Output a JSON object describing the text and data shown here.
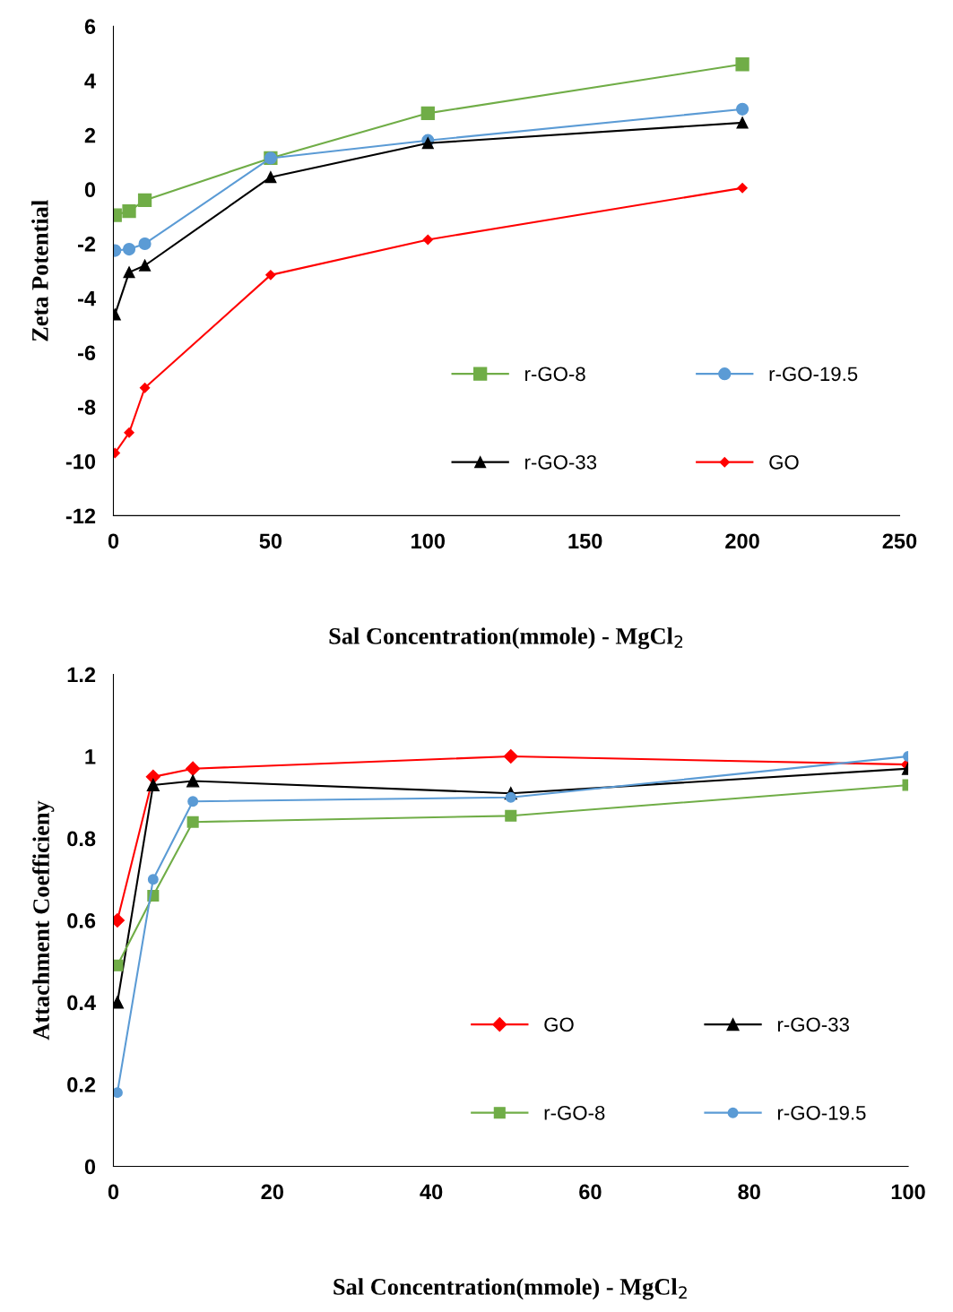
{
  "chart_data": [
    {
      "type": "line",
      "xlabel": "Sal Concentration(mmole) - MgCl$_{2}$",
      "ylabel": "Zeta Potential",
      "x": [
        0.5,
        5,
        10,
        50,
        100,
        200
      ],
      "xlim": [
        0,
        250
      ],
      "xticks": [
        0,
        50,
        100,
        150,
        200,
        250
      ],
      "ylim": [
        -12,
        6
      ],
      "yticks": [
        -12,
        -10,
        -8,
        -6,
        -4,
        -2,
        0,
        2,
        4,
        6
      ],
      "grid": false,
      "legend": "bottom right",
      "series": [
        {
          "name": "r-GO-8",
          "color": "#70ad47",
          "marker": "square",
          "values": [
            -0.95,
            -0.8,
            -0.4,
            1.15,
            2.8,
            4.6
          ]
        },
        {
          "name": "r-GO-19.5",
          "color": "#5b9bd5",
          "marker": "circle",
          "values": [
            -2.25,
            -2.2,
            -2.0,
            1.15,
            1.8,
            2.95
          ]
        },
        {
          "name": "r-GO-33",
          "color": "#000000",
          "marker": "triangle",
          "values": [
            -4.6,
            -3.05,
            -2.8,
            0.45,
            1.7,
            2.45
          ]
        },
        {
          "name": "GO",
          "color": "#ff0000",
          "marker": "diamond",
          "values": [
            -9.7,
            -8.95,
            -7.3,
            -3.15,
            -1.85,
            0.05
          ]
        }
      ]
    },
    {
      "type": "line",
      "xlabel": "Sal Concentration(mmole) - MgCl$_{2}$",
      "ylabel": "Attachment Coefficieny",
      "x": [
        0.5,
        5,
        10,
        50,
        100
      ],
      "xlim": [
        0,
        100
      ],
      "xticks": [
        0,
        20,
        40,
        60,
        80,
        100
      ],
      "ylim": [
        0,
        1.2
      ],
      "yticks": [
        0,
        0.2,
        0.4,
        0.6,
        0.8,
        1,
        1.2
      ],
      "grid": false,
      "legend": "bottom right",
      "series": [
        {
          "name": "GO",
          "color": "#ff0000",
          "marker": "diamond",
          "values": [
            0.6,
            0.95,
            0.97,
            1.0,
            0.98
          ]
        },
        {
          "name": "r-GO-33",
          "color": "#000000",
          "marker": "triangle",
          "values": [
            0.4,
            0.93,
            0.94,
            0.91,
            0.97
          ]
        },
        {
          "name": "r-GO-8",
          "color": "#70ad47",
          "marker": "square",
          "values": [
            0.49,
            0.66,
            0.84,
            0.855,
            0.93
          ]
        },
        {
          "name": "r-GO-19.5",
          "color": "#5b9bd5",
          "marker": "circle",
          "values": [
            0.18,
            0.7,
            0.89,
            0.9,
            1.0
          ]
        }
      ]
    }
  ]
}
